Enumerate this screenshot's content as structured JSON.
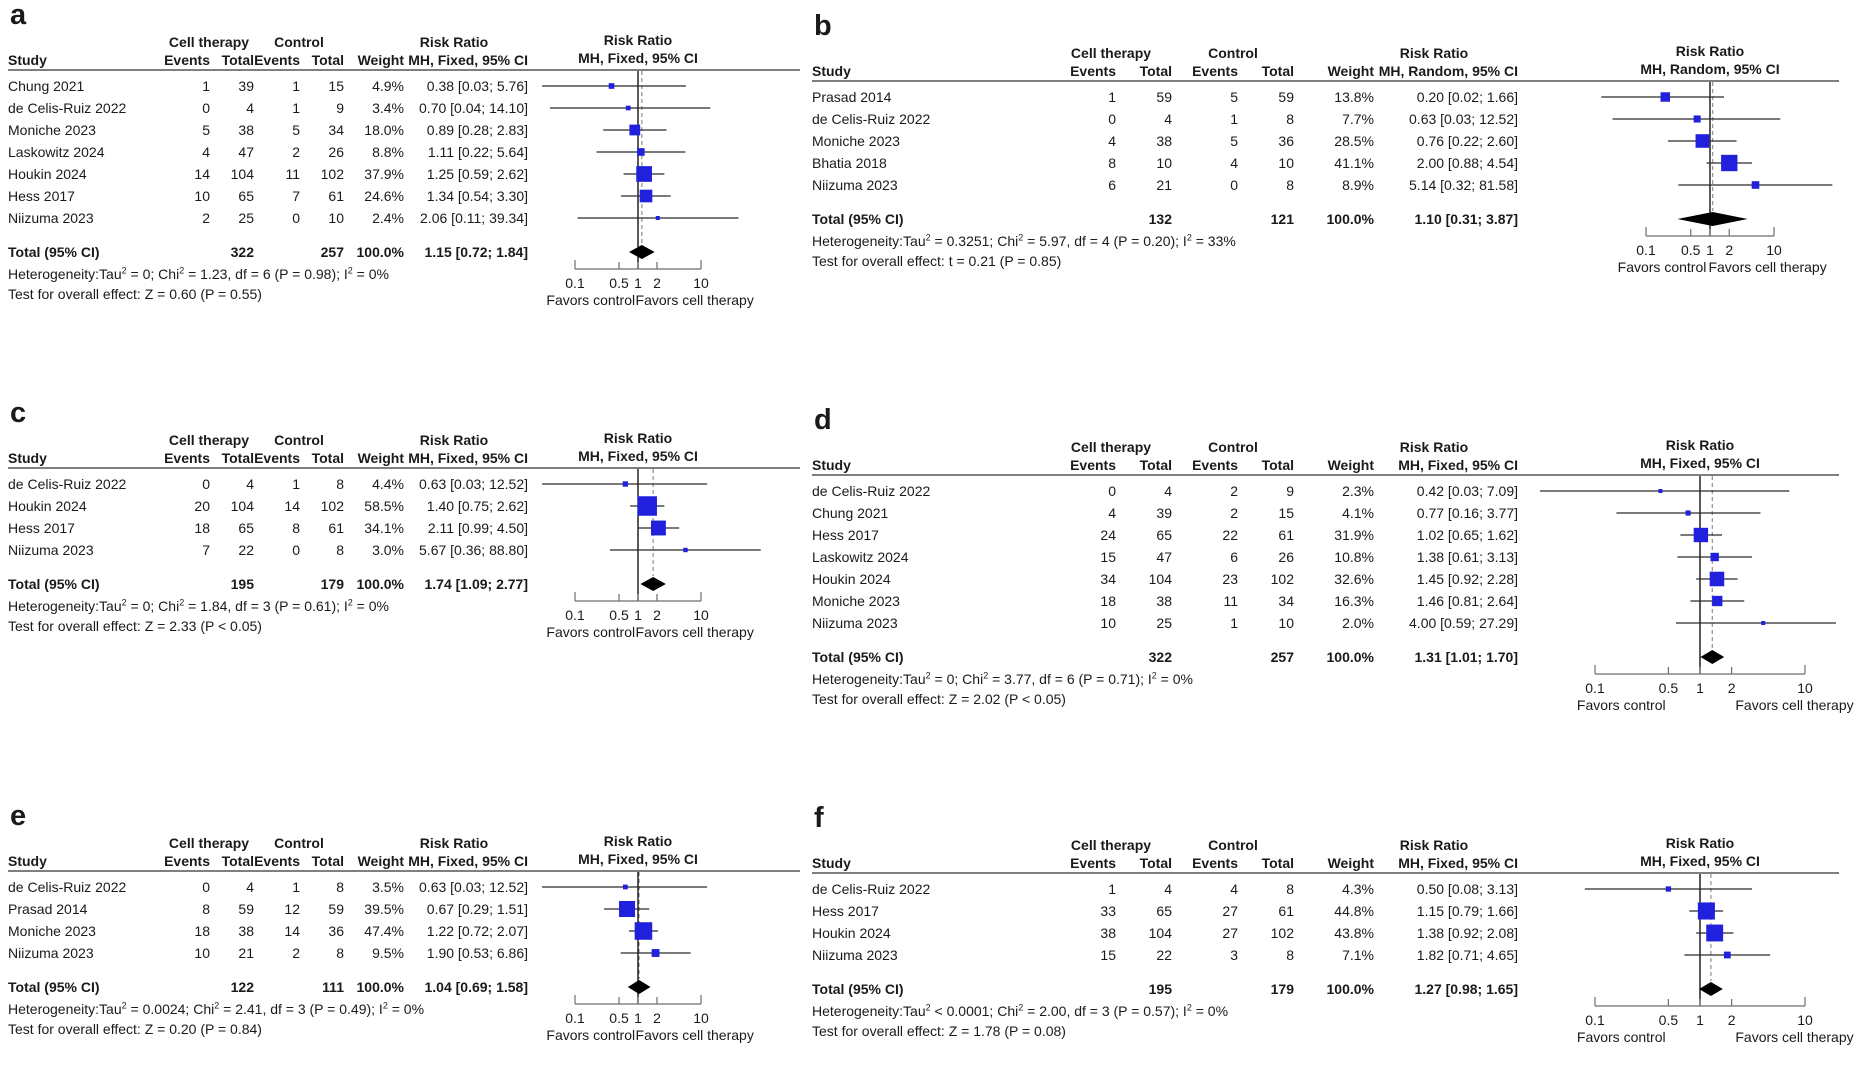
{
  "figure": {
    "colors": {
      "square": "#2121dd",
      "diamond": "#000000",
      "ci_line": "#2b2b2b",
      "ref_line": "#000000",
      "pooled_dashed_line": "#999999",
      "axis": "#6e6e6e",
      "separator": "#7f7f7f",
      "text": "#1a1a1a"
    },
    "axis_ticks": [
      "0.1",
      "0.5",
      "1",
      "2",
      "10"
    ],
    "favors_left": "Favors control",
    "favors_right": "Favors cell therapy"
  },
  "chart_data": [
    {
      "type": "forest",
      "label": "a",
      "side": "left",
      "header": {
        "group_cell_therapy": "Cell therapy",
        "group_control": "Control",
        "group_risk_ratio": "Risk Ratio",
        "study": "Study",
        "events": "Events",
        "total": "Total",
        "weight": "Weight",
        "model": "MH, Fixed, 95% CI"
      },
      "plot_header": [
        "Risk Ratio",
        "MH, Fixed, 95% CI"
      ],
      "studies": [
        {
          "study": "Chung 2021",
          "ct_events": "1",
          "ct_total": "39",
          "c_events": "1",
          "c_total": "15",
          "weight": "4.9%",
          "rr_text": "0.38 [0.03; 5.76]",
          "rr": 0.38,
          "lo": 0.03,
          "hi": 5.76
        },
        {
          "study": "de Celis-Ruiz 2022",
          "ct_events": "0",
          "ct_total": "4",
          "c_events": "1",
          "c_total": "9",
          "weight": "3.4%",
          "rr_text": "0.70 [0.04; 14.10]",
          "rr": 0.7,
          "lo": 0.04,
          "hi": 14.1
        },
        {
          "study": "Moniche 2023",
          "ct_events": "5",
          "ct_total": "38",
          "c_events": "5",
          "c_total": "34",
          "weight": "18.0%",
          "rr_text": "0.89 [0.28; 2.83]",
          "rr": 0.89,
          "lo": 0.28,
          "hi": 2.83
        },
        {
          "study": "Laskowitz 2024",
          "ct_events": "4",
          "ct_total": "47",
          "c_events": "2",
          "c_total": "26",
          "weight": "8.8%",
          "rr_text": "1.11 [0.22; 5.64]",
          "rr": 1.11,
          "lo": 0.22,
          "hi": 5.64
        },
        {
          "study": "Houkin 2024",
          "ct_events": "14",
          "ct_total": "104",
          "c_events": "11",
          "c_total": "102",
          "weight": "37.9%",
          "rr_text": "1.25 [0.59; 2.62]",
          "rr": 1.25,
          "lo": 0.59,
          "hi": 2.62
        },
        {
          "study": "Hess 2017",
          "ct_events": "10",
          "ct_total": "65",
          "c_events": "7",
          "c_total": "61",
          "weight": "24.6%",
          "rr_text": "1.34 [0.54; 3.30]",
          "rr": 1.34,
          "lo": 0.54,
          "hi": 3.3
        },
        {
          "study": "Niizuma 2023",
          "ct_events": "2",
          "ct_total": "25",
          "c_events": "0",
          "c_total": "10",
          "weight": "2.4%",
          "rr_text": "2.06 [0.11; 39.34]",
          "rr": 2.06,
          "lo": 0.11,
          "hi": 39.34
        }
      ],
      "total": {
        "label": "Total (95% CI)",
        "ct_total": "322",
        "c_total": "257",
        "weight": "100.0%",
        "rr_text": "1.15 [0.72; 1.84]",
        "rr": 1.15,
        "lo": 0.72,
        "hi": 1.84
      },
      "heterogeneity": "Heterogeneity:Tau^2 = 0; Chi^2 = 1.23, df = 6 (P = 0.98); I^2 = 0%",
      "overall_test": "Test for overall effect: Z = 0.60 (P = 0.55)"
    },
    {
      "type": "forest",
      "label": "b",
      "side": "right",
      "header": {
        "group_cell_therapy": "Cell therapy",
        "group_control": "Control",
        "group_risk_ratio": "Risk Ratio",
        "study": "Study",
        "events": "Events",
        "total": "Total",
        "weight": "Weight",
        "model": "MH, Random, 95% CI"
      },
      "plot_header": [
        "Risk Ratio",
        "MH, Random, 95% CI"
      ],
      "studies": [
        {
          "study": "Prasad 2014",
          "ct_events": "1",
          "ct_total": "59",
          "c_events": "5",
          "c_total": "59",
          "weight": "13.8%",
          "rr_text": "0.20 [0.02; 1.66]",
          "rr": 0.2,
          "lo": 0.02,
          "hi": 1.66
        },
        {
          "study": "de Celis-Ruiz 2022",
          "ct_events": "0",
          "ct_total": "4",
          "c_events": "1",
          "c_total": "8",
          "weight": "7.7%",
          "rr_text": "0.63 [0.03; 12.52]",
          "rr": 0.63,
          "lo": 0.03,
          "hi": 12.52
        },
        {
          "study": "Moniche 2023",
          "ct_events": "4",
          "ct_total": "38",
          "c_events": "5",
          "c_total": "36",
          "weight": "28.5%",
          "rr_text": "0.76 [0.22; 2.60]",
          "rr": 0.76,
          "lo": 0.22,
          "hi": 2.6
        },
        {
          "study": "Bhatia 2018",
          "ct_events": "8",
          "ct_total": "10",
          "c_events": "4",
          "c_total": "10",
          "weight": "41.1%",
          "rr_text": "2.00 [0.88; 4.54]",
          "rr": 2.0,
          "lo": 0.88,
          "hi": 4.54
        },
        {
          "study": "Niizuma 2023",
          "ct_events": "6",
          "ct_total": "21",
          "c_events": "0",
          "c_total": "8",
          "weight": "8.9%",
          "rr_text": "5.14 [0.32; 81.58]",
          "rr": 5.14,
          "lo": 0.32,
          "hi": 81.58
        }
      ],
      "total": {
        "label": "Total (95% CI)",
        "ct_total": "132",
        "c_total": "121",
        "weight": "100.0%",
        "rr_text": "1.10 [0.31; 3.87]",
        "rr": 1.1,
        "lo": 0.31,
        "hi": 3.87
      },
      "heterogeneity": "Heterogeneity:Tau^2 = 0.3251; Chi^2 = 5.97, df = 4 (P = 0.20); I^2 = 33%",
      "overall_test": "Test for overall effect: t = 0.21 (P = 0.85)"
    },
    {
      "type": "forest",
      "label": "c",
      "side": "left",
      "header": {
        "group_cell_therapy": "Cell therapy",
        "group_control": "Control",
        "group_risk_ratio": "Risk Ratio",
        "study": "Study",
        "events": "Events",
        "total": "Total",
        "weight": "Weight",
        "model": "MH, Fixed, 95% CI"
      },
      "plot_header": [
        "Risk Ratio",
        "MH, Fixed, 95% CI"
      ],
      "studies": [
        {
          "study": "de Celis-Ruiz 2022",
          "ct_events": "0",
          "ct_total": "4",
          "c_events": "1",
          "c_total": "8",
          "weight": "4.4%",
          "rr_text": "0.63 [0.03; 12.52]",
          "rr": 0.63,
          "lo": 0.03,
          "hi": 12.52
        },
        {
          "study": "Houkin 2024",
          "ct_events": "20",
          "ct_total": "104",
          "c_events": "14",
          "c_total": "102",
          "weight": "58.5%",
          "rr_text": "1.40 [0.75; 2.62]",
          "rr": 1.4,
          "lo": 0.75,
          "hi": 2.62
        },
        {
          "study": "Hess 2017",
          "ct_events": "18",
          "ct_total": "65",
          "c_events": "8",
          "c_total": "61",
          "weight": "34.1%",
          "rr_text": "2.11 [0.99; 4.50]",
          "rr": 2.11,
          "lo": 0.99,
          "hi": 4.5
        },
        {
          "study": "Niizuma 2023",
          "ct_events": "7",
          "ct_total": "22",
          "c_events": "0",
          "c_total": "8",
          "weight": "3.0%",
          "rr_text": "5.67 [0.36; 88.80]",
          "rr": 5.67,
          "lo": 0.36,
          "hi": 88.8
        }
      ],
      "total": {
        "label": "Total (95% CI)",
        "ct_total": "195",
        "c_total": "179",
        "weight": "100.0%",
        "rr_text": "1.74 [1.09; 2.77]",
        "rr": 1.74,
        "lo": 1.09,
        "hi": 2.77
      },
      "heterogeneity": "Heterogeneity:Tau^2 = 0; Chi^2 = 1.84, df = 3 (P = 0.61); I^2 = 0%",
      "overall_test": "Test for overall effect: Z = 2.33 (P < 0.05)"
    },
    {
      "type": "forest",
      "label": "d",
      "side": "right",
      "header": {
        "group_cell_therapy": "Cell therapy",
        "group_control": "Control",
        "group_risk_ratio": "Risk Ratio",
        "study": "Study",
        "events": "Events",
        "total": "Total",
        "weight": "Weight",
        "model": "MH, Fixed, 95% CI"
      },
      "plot_header": [
        "Risk Ratio",
        "MH, Fixed, 95% CI"
      ],
      "studies": [
        {
          "study": "de Celis-Ruiz 2022",
          "ct_events": "0",
          "ct_total": "4",
          "c_events": "2",
          "c_total": "9",
          "weight": "2.3%",
          "rr_text": "0.42 [0.03; 7.09]",
          "rr": 0.42,
          "lo": 0.03,
          "hi": 7.09
        },
        {
          "study": "Chung 2021",
          "ct_events": "4",
          "ct_total": "39",
          "c_events": "2",
          "c_total": "15",
          "weight": "4.1%",
          "rr_text": "0.77 [0.16; 3.77]",
          "rr": 0.77,
          "lo": 0.16,
          "hi": 3.77
        },
        {
          "study": "Hess 2017",
          "ct_events": "24",
          "ct_total": "65",
          "c_events": "22",
          "c_total": "61",
          "weight": "31.9%",
          "rr_text": "1.02 [0.65; 1.62]",
          "rr": 1.02,
          "lo": 0.65,
          "hi": 1.62
        },
        {
          "study": "Laskowitz 2024",
          "ct_events": "15",
          "ct_total": "47",
          "c_events": "6",
          "c_total": "26",
          "weight": "10.8%",
          "rr_text": "1.38 [0.61; 3.13]",
          "rr": 1.38,
          "lo": 0.61,
          "hi": 3.13
        },
        {
          "study": "Houkin 2024",
          "ct_events": "34",
          "ct_total": "104",
          "c_events": "23",
          "c_total": "102",
          "weight": "32.6%",
          "rr_text": "1.45 [0.92; 2.28]",
          "rr": 1.45,
          "lo": 0.92,
          "hi": 2.28
        },
        {
          "study": "Moniche 2023",
          "ct_events": "18",
          "ct_total": "38",
          "c_events": "11",
          "c_total": "34",
          "weight": "16.3%",
          "rr_text": "1.46 [0.81; 2.64]",
          "rr": 1.46,
          "lo": 0.81,
          "hi": 2.64
        },
        {
          "study": "Niizuma 2023",
          "ct_events": "10",
          "ct_total": "25",
          "c_events": "1",
          "c_total": "10",
          "weight": "2.0%",
          "rr_text": "4.00 [0.59; 27.29]",
          "rr": 4.0,
          "lo": 0.59,
          "hi": 27.29
        }
      ],
      "total": {
        "label": "Total (95% CI)",
        "ct_total": "322",
        "c_total": "257",
        "weight": "100.0%",
        "rr_text": "1.31 [1.01; 1.70]",
        "rr": 1.31,
        "lo": 1.01,
        "hi": 1.7
      },
      "heterogeneity": "Heterogeneity:Tau^2 = 0; Chi^2 = 3.77, df = 6 (P = 0.71); I^2 = 0%",
      "overall_test": "Test for overall effect: Z = 2.02 (P < 0.05)"
    },
    {
      "type": "forest",
      "label": "e",
      "side": "left",
      "header": {
        "group_cell_therapy": "Cell therapy",
        "group_control": "Control",
        "group_risk_ratio": "Risk Ratio",
        "study": "Study",
        "events": "Events",
        "total": "Total",
        "weight": "Weight",
        "model": "MH, Fixed, 95% CI"
      },
      "plot_header": [
        "Risk Ratio",
        "MH, Fixed, 95% CI"
      ],
      "studies": [
        {
          "study": "de Celis-Ruiz 2022",
          "ct_events": "0",
          "ct_total": "4",
          "c_events": "1",
          "c_total": "8",
          "weight": "3.5%",
          "rr_text": "0.63 [0.03; 12.52]",
          "rr": 0.63,
          "lo": 0.03,
          "hi": 12.52
        },
        {
          "study": "Prasad 2014",
          "ct_events": "8",
          "ct_total": "59",
          "c_events": "12",
          "c_total": "59",
          "weight": "39.5%",
          "rr_text": "0.67 [0.29; 1.51]",
          "rr": 0.67,
          "lo": 0.29,
          "hi": 1.51
        },
        {
          "study": "Moniche 2023",
          "ct_events": "18",
          "ct_total": "38",
          "c_events": "14",
          "c_total": "36",
          "weight": "47.4%",
          "rr_text": "1.22 [0.72; 2.07]",
          "rr": 1.22,
          "lo": 0.72,
          "hi": 2.07
        },
        {
          "study": "Niizuma 2023",
          "ct_events": "10",
          "ct_total": "21",
          "c_events": "2",
          "c_total": "8",
          "weight": "9.5%",
          "rr_text": "1.90 [0.53; 6.86]",
          "rr": 1.9,
          "lo": 0.53,
          "hi": 6.86
        }
      ],
      "total": {
        "label": "Total (95% CI)",
        "ct_total": "122",
        "c_total": "111",
        "weight": "100.0%",
        "rr_text": "1.04 [0.69; 1.58]",
        "rr": 1.04,
        "lo": 0.69,
        "hi": 1.58
      },
      "heterogeneity": "Heterogeneity:Tau^2 = 0.0024; Chi^2 = 2.41, df = 3 (P = 0.49); I^2 = 0%",
      "overall_test": "Test for overall effect: Z = 0.20 (P = 0.84)"
    },
    {
      "type": "forest",
      "label": "f",
      "side": "right",
      "header": {
        "group_cell_therapy": "Cell therapy",
        "group_control": "Control",
        "group_risk_ratio": "Risk Ratio",
        "study": "Study",
        "events": "Events",
        "total": "Total",
        "weight": "Weight",
        "model": "MH, Fixed, 95% CI"
      },
      "plot_header": [
        "Risk Ratio",
        "MH, Fixed, 95% CI"
      ],
      "studies": [
        {
          "study": "de Celis-Ruiz 2022",
          "ct_events": "1",
          "ct_total": "4",
          "c_events": "4",
          "c_total": "8",
          "weight": "4.3%",
          "rr_text": "0.50 [0.08; 3.13]",
          "rr": 0.5,
          "lo": 0.08,
          "hi": 3.13
        },
        {
          "study": "Hess 2017",
          "ct_events": "33",
          "ct_total": "65",
          "c_events": "27",
          "c_total": "61",
          "weight": "44.8%",
          "rr_text": "1.15 [0.79; 1.66]",
          "rr": 1.15,
          "lo": 0.79,
          "hi": 1.66
        },
        {
          "study": "Houkin 2024",
          "ct_events": "38",
          "ct_total": "104",
          "c_events": "27",
          "c_total": "102",
          "weight": "43.8%",
          "rr_text": "1.38 [0.92; 2.08]",
          "rr": 1.38,
          "lo": 0.92,
          "hi": 2.08
        },
        {
          "study": "Niizuma 2023",
          "ct_events": "15",
          "ct_total": "22",
          "c_events": "3",
          "c_total": "8",
          "weight": "7.1%",
          "rr_text": "1.82 [0.71; 4.65]",
          "rr": 1.82,
          "lo": 0.71,
          "hi": 4.65
        }
      ],
      "total": {
        "label": "Total (95% CI)",
        "ct_total": "195",
        "c_total": "179",
        "weight": "100.0%",
        "rr_text": "1.27 [0.98; 1.65]",
        "rr": 1.27,
        "lo": 0.98,
        "hi": 1.65
      },
      "heterogeneity": "Heterogeneity:Tau^2 < 0.0001; Chi^2 = 2.00, df = 3 (P = 0.57); I^2 = 0%",
      "overall_test": "Test for overall effect: Z = 1.78 (P = 0.08)"
    }
  ]
}
